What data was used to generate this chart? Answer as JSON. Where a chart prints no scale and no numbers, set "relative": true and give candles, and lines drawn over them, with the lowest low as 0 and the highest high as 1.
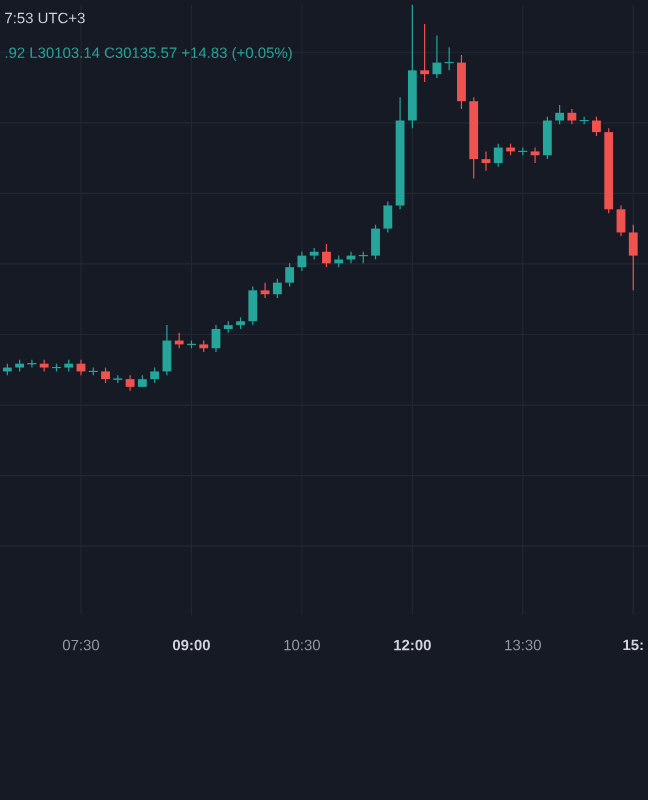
{
  "chart_data": {
    "type": "candlestick",
    "relative": true,
    "grid": true,
    "annotations": [
      "7:53 UTC+3",
      ".92 L30103.14 C30135.57 +14.83 (+0.05%)"
    ],
    "xlim": [
      6.4,
      15.2
    ],
    "xticks": [
      {
        "value": 7.5,
        "label": "07:30"
      },
      {
        "value": 9,
        "label": "09:00"
      },
      {
        "value": 10.5,
        "label": "10:30"
      },
      {
        "value": 12,
        "label": "12:00"
      },
      {
        "value": 13.5,
        "label": "13:30"
      },
      {
        "value": 15,
        "label": "15:"
      }
    ],
    "x": [
      6.5,
      6.6667,
      6.8333,
      7,
      7.1667,
      7.3333,
      7.5,
      7.6667,
      7.8333,
      8,
      8.1667,
      8.3333,
      8.5,
      8.6667,
      8.8333,
      9,
      9.1667,
      9.3333,
      9.5,
      9.6667,
      9.8333,
      10,
      10.1667,
      10.3333,
      10.5,
      10.6667,
      10.8333,
      11,
      11.1667,
      11.3333,
      11.5,
      11.6667,
      11.8333,
      12,
      12.1667,
      12.3333,
      12.5,
      12.6667,
      12.8333,
      13,
      13.1667,
      13.3333,
      13.5,
      13.6667,
      13.8333,
      14,
      14.1667,
      14.3333,
      14.5,
      14.6667,
      14.8333,
      15
    ],
    "ohlc": [
      [
        0.05,
        0.07,
        0.04,
        0.06
      ],
      [
        0.06,
        0.08,
        0.05,
        0.07
      ],
      [
        0.07,
        0.08,
        0.06,
        0.07
      ],
      [
        0.07,
        0.08,
        0.05,
        0.06
      ],
      [
        0.06,
        0.07,
        0.05,
        0.06
      ],
      [
        0.06,
        0.08,
        0.05,
        0.07
      ],
      [
        0.07,
        0.08,
        0.04,
        0.05
      ],
      [
        0.05,
        0.06,
        0.04,
        0.05
      ],
      [
        0.05,
        0.06,
        0.02,
        0.03
      ],
      [
        0.03,
        0.04,
        0.02,
        0.03
      ],
      [
        0.03,
        0.04,
        0,
        0.01
      ],
      [
        0.01,
        0.04,
        0.01,
        0.03
      ],
      [
        0.03,
        0.06,
        0.02,
        0.05
      ],
      [
        0.05,
        0.17,
        0.04,
        0.13
      ],
      [
        0.13,
        0.15,
        0.11,
        0.12
      ],
      [
        0.12,
        0.13,
        0.11,
        0.12
      ],
      [
        0.12,
        0.13,
        0.1,
        0.11
      ],
      [
        0.11,
        0.17,
        0.1,
        0.16
      ],
      [
        0.16,
        0.18,
        0.15,
        0.17
      ],
      [
        0.17,
        0.19,
        0.16,
        0.18
      ],
      [
        0.18,
        0.27,
        0.17,
        0.26
      ],
      [
        0.26,
        0.28,
        0.24,
        0.25
      ],
      [
        0.25,
        0.29,
        0.24,
        0.28
      ],
      [
        0.28,
        0.33,
        0.27,
        0.32
      ],
      [
        0.32,
        0.36,
        0.31,
        0.35
      ],
      [
        0.35,
        0.37,
        0.34,
        0.36
      ],
      [
        0.36,
        0.38,
        0.32,
        0.33
      ],
      [
        0.33,
        0.35,
        0.32,
        0.34
      ],
      [
        0.34,
        0.36,
        0.33,
        0.35
      ],
      [
        0.35,
        0.36,
        0.33,
        0.35
      ],
      [
        0.35,
        0.43,
        0.34,
        0.42
      ],
      [
        0.42,
        0.49,
        0.41,
        0.48
      ],
      [
        0.48,
        0.76,
        0.47,
        0.7
      ],
      [
        0.7,
        1,
        0.68,
        0.83
      ],
      [
        0.83,
        0.95,
        0.8,
        0.82
      ],
      [
        0.82,
        0.92,
        0.81,
        0.85
      ],
      [
        0.85,
        0.89,
        0.83,
        0.85
      ],
      [
        0.85,
        0.87,
        0.73,
        0.75
      ],
      [
        0.75,
        0.76,
        0.55,
        0.6
      ],
      [
        0.6,
        0.62,
        0.57,
        0.59
      ],
      [
        0.59,
        0.64,
        0.58,
        0.63
      ],
      [
        0.63,
        0.64,
        0.61,
        0.62
      ],
      [
        0.62,
        0.63,
        0.61,
        0.62
      ],
      [
        0.62,
        0.63,
        0.59,
        0.61
      ],
      [
        0.61,
        0.71,
        0.6,
        0.7
      ],
      [
        0.7,
        0.74,
        0.69,
        0.72
      ],
      [
        0.72,
        0.73,
        0.69,
        0.7
      ],
      [
        0.7,
        0.71,
        0.69,
        0.7
      ],
      [
        0.7,
        0.71,
        0.66,
        0.67
      ],
      [
        0.67,
        0.68,
        0.46,
        0.47
      ],
      [
        0.47,
        0.48,
        0.4,
        0.41
      ],
      [
        0.41,
        0.43,
        0.26,
        0.35
      ]
    ]
  }
}
